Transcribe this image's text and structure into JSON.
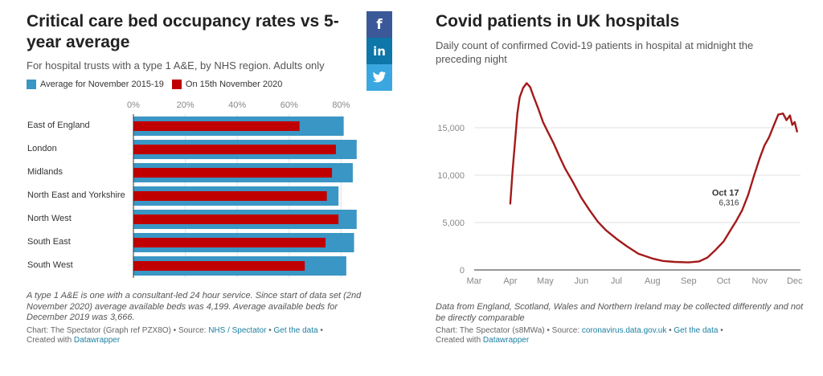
{
  "left": {
    "title": "Critical care bed occupancy rates vs 5-year average",
    "subtitle": "For hospital trusts with a type 1 A&E, by NHS region. Adults only",
    "legend": [
      {
        "label": "Average for November 2015-19",
        "color": "#3a96c4"
      },
      {
        "label": "On 15th November 2020",
        "color": "#c00000"
      }
    ],
    "note": "A type 1 A&E is one with a consultant-led 24 hour service. Since start of data set (2nd November 2020) average available beds was 4,199. Average available beds for December 2019 was 3,666.",
    "credit": {
      "prefix": "Chart: The Spectator (Graph ref PZX8O) • Source: ",
      "source_link": "NHS / Spectator",
      "sep": " • ",
      "data_link": "Get the data",
      "tail": " •",
      "created_prefix": "Created with ",
      "created_link": "Datawrapper"
    }
  },
  "share": {
    "facebook": "f",
    "linkedin": "in",
    "twitter": "🐦"
  },
  "right": {
    "title": "Covid patients in UK hospitals",
    "subtitle": "Daily count of confirmed Covid-19 patients in hospital at midnight the preceding night",
    "annotation": {
      "label": "Oct 17",
      "value": "6,316"
    },
    "note": "Data from England, Scotland, Wales and Northern Ireland may be collected differently and not be directly comparable",
    "credit": {
      "prefix": "Chart: The Spectator (s8MWa) • Source: ",
      "source_link": "coronavirus.data.gov.uk",
      "sep": " • ",
      "data_link": "Get the data",
      "tail": " •",
      "created_prefix": "Created with ",
      "created_link": "Datawrapper"
    }
  },
  "chart_data": [
    {
      "type": "bar",
      "title": "Critical care bed occupancy rates vs 5-year average",
      "categories": [
        "East of England",
        "London",
        "Midlands",
        "North East and Yorkshire",
        "North West",
        "South East",
        "South West"
      ],
      "series": [
        {
          "name": "Average for November 2015-19",
          "color": "#3a96c4",
          "values": [
            81,
            86,
            84.5,
            79,
            86,
            85,
            82
          ]
        },
        {
          "name": "On 15th November 2020",
          "color": "#c00000",
          "values": [
            64,
            78,
            76.5,
            74.5,
            79,
            74,
            66
          ]
        }
      ],
      "x_ticks": [
        "0%",
        "20%",
        "40%",
        "60%",
        "80%"
      ],
      "xlim": [
        0,
        86
      ]
    },
    {
      "type": "line",
      "title": "Covid patients in UK hospitals",
      "x_ticks": [
        "Mar",
        "Apr",
        "May",
        "Jun",
        "Jul",
        "Aug",
        "Sep",
        "Oct",
        "Nov",
        "Dec"
      ],
      "y_ticks": [
        "0",
        "5,000",
        "10,000",
        "15,000"
      ],
      "ylim": [
        0,
        20000
      ],
      "series": [
        {
          "color": "#a31a1a",
          "x": [
            "Apr 1",
            "Apr 3",
            "Apr 5",
            "Apr 7",
            "Apr 9",
            "Apr 12",
            "Apr 15",
            "Apr 18",
            "Apr 21",
            "Apr 25",
            "Apr 29",
            "May 3",
            "May 8",
            "May 13",
            "May 18",
            "May 25",
            "Jun 1",
            "Jun 8",
            "Jun 15",
            "Jun 22",
            "Jul 1",
            "Jul 10",
            "Jul 20",
            "Aug 1",
            "Aug 10",
            "Aug 20",
            "Sep 1",
            "Sep 10",
            "Sep 17",
            "Sep 24",
            "Oct 1",
            "Oct 7",
            "Oct 12",
            "Oct 17",
            "Oct 22",
            "Oct 27",
            "Nov 1",
            "Nov 5",
            "Nov 9",
            "Nov 13",
            "Nov 17",
            "Nov 21",
            "Nov 24",
            "Nov 27",
            "Nov 29",
            "Dec 1",
            "Dec 3"
          ],
          "values": [
            7000,
            10500,
            13500,
            16500,
            18200,
            19200,
            19700,
            19300,
            18300,
            17000,
            15600,
            14600,
            13400,
            12000,
            10700,
            9200,
            7600,
            6300,
            5100,
            4200,
            3300,
            2500,
            1700,
            1200,
            950,
            850,
            800,
            900,
            1300,
            2100,
            3000,
            4200,
            5200,
            6316,
            7900,
            9900,
            11800,
            13100,
            14000,
            15200,
            16400,
            16500,
            15800,
            16300,
            15300,
            15600,
            14600
          ]
        }
      ]
    }
  ]
}
